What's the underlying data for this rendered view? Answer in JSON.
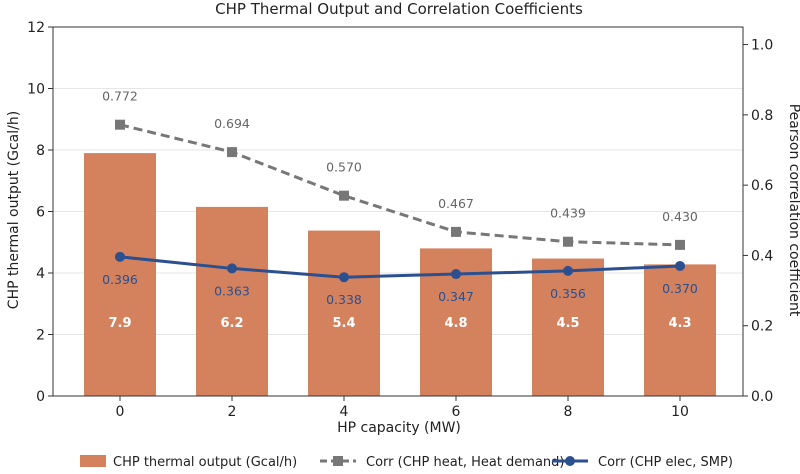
{
  "chart_data": {
    "type": "bar+line",
    "title": "CHP Thermal Output and Correlation Coefficients",
    "xlabel": "HP capacity (MW)",
    "ylabel_left": "CHP thermal output (Gcal/h)",
    "ylabel_right": "Pearson correlation coefficient",
    "x": [
      "0",
      "2",
      "4",
      "6",
      "8",
      "10"
    ],
    "ylim_left": [
      0,
      12
    ],
    "yticks_left": [
      "0",
      "2",
      "4",
      "6",
      "8",
      "10",
      "12"
    ],
    "ylim_right": [
      0,
      1.05
    ],
    "yticks_right": [
      "0.0",
      "0.2",
      "0.4",
      "0.6",
      "0.8",
      "1.0"
    ],
    "grid": "horizontal",
    "legend_position": "bottom",
    "bars": {
      "name": "CHP thermal output (Gcal/h)",
      "values": [
        7.9,
        6.15,
        5.38,
        4.8,
        4.47,
        4.28
      ],
      "labels": [
        "7.9",
        "6.2",
        "5.4",
        "4.8",
        "4.5",
        "4.3"
      ],
      "color": "#d4825e"
    },
    "series": [
      {
        "name": "Corr (CHP heat, Heat demand)",
        "values": [
          0.772,
          0.694,
          0.57,
          0.467,
          0.439,
          0.43
        ],
        "labels": [
          "0.772",
          "0.694",
          "0.570",
          "0.467",
          "0.439",
          "0.430"
        ],
        "color": "#777777",
        "style": "dashed",
        "marker": "square"
      },
      {
        "name": "Corr (CHP elec, SMP)",
        "values": [
          0.396,
          0.363,
          0.338,
          0.347,
          0.356,
          0.37
        ],
        "labels": [
          "0.396",
          "0.363",
          "0.338",
          "0.347",
          "0.356",
          "0.370"
        ],
        "color": "#2b4f8f",
        "style": "solid",
        "marker": "circle"
      }
    ]
  }
}
